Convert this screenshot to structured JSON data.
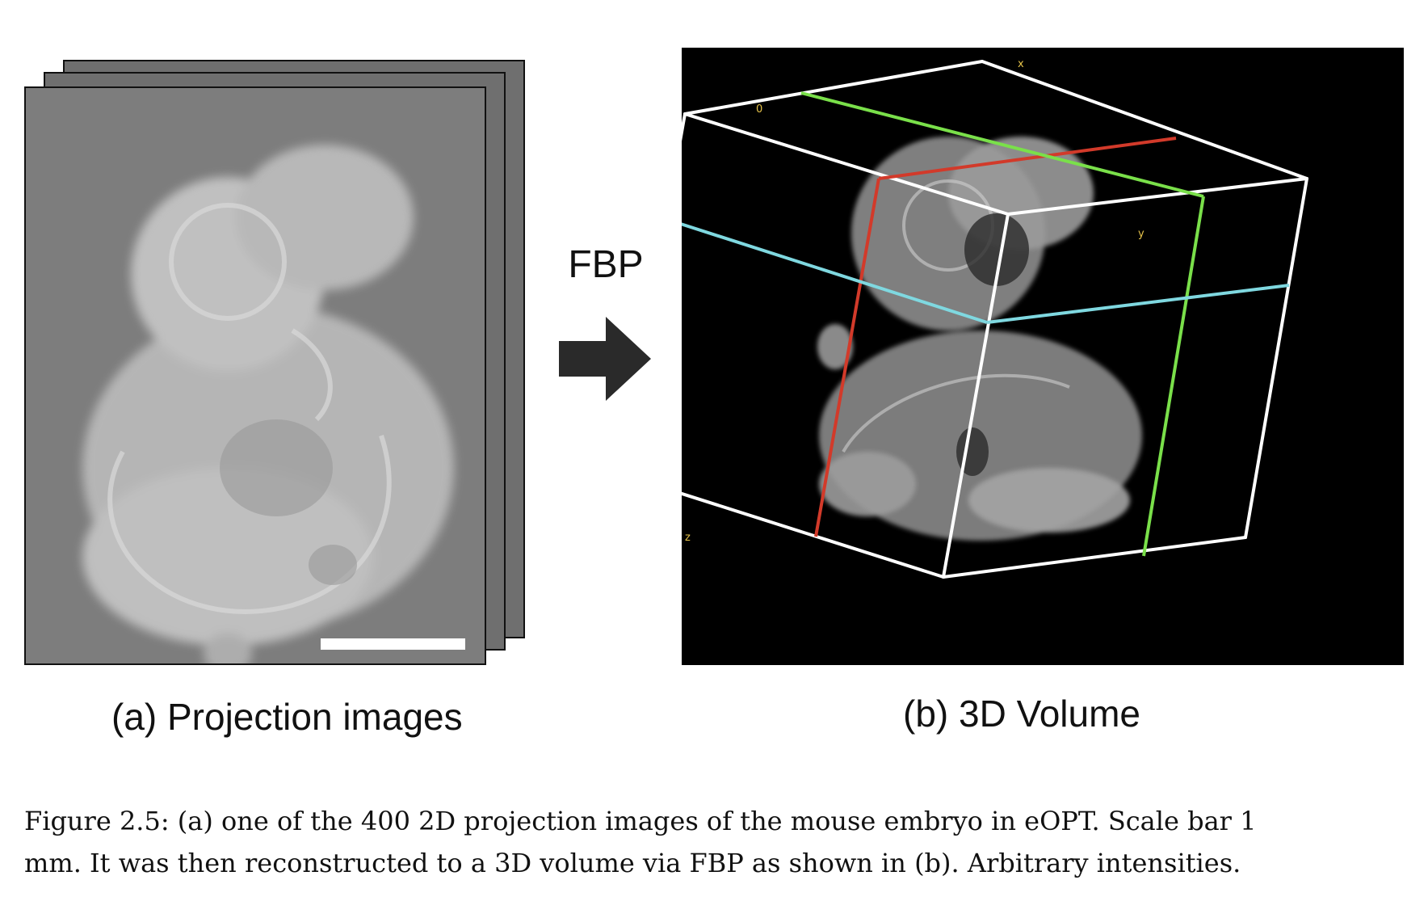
{
  "arrow": {
    "label": "FBP"
  },
  "panel_a": {
    "caption": "(a) Projection images"
  },
  "panel_b": {
    "caption": "(b) 3D Volume",
    "axis_labels": {
      "x": "x",
      "origin": "0",
      "y": "y",
      "z": "z"
    },
    "colors": {
      "red": "#d23a2a",
      "green": "#7ae04a",
      "cyan": "#7fd8e0",
      "box": "#ffffff",
      "axis_text": "#e6c34a"
    }
  },
  "figure_caption": {
    "line1": "Figure 2.5: (a) one of the 400 2D projection images of the mouse embryo in eOPT. Scale bar 1",
    "line2": "mm. It was then reconstructed to a 3D volume via FBP as shown in (b). Arbitrary intensities."
  }
}
